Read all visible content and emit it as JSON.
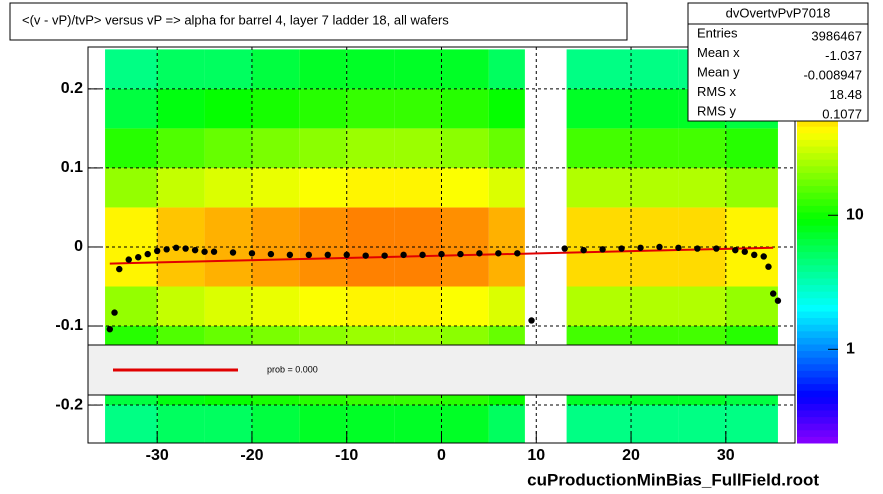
{
  "chart_data": {
    "type": "heatmap-profile",
    "title": "<(v - vP)/tvP> versus   vP => alpha for barrel 4, layer 7 ladder 18, all wafers",
    "footer": "cuProductionMinBias_FullField.root",
    "xlim": [
      -37.3,
      37.3
    ],
    "ylim": [
      -0.248,
      0.253
    ],
    "xticks": [
      -30,
      -20,
      -10,
      0,
      10,
      20,
      30
    ],
    "yticks": [
      -0.2,
      -0.1,
      0,
      0.1,
      0.2
    ],
    "grid": true,
    "xbins": [
      -35.5,
      -30,
      -25,
      -20,
      -15,
      -10,
      -5,
      0,
      5,
      8.8,
      13.2,
      20,
      25,
      30,
      35.5
    ],
    "ybins": [
      -0.25,
      -0.2,
      -0.15,
      -0.1,
      -0.05,
      0,
      0.05,
      0.1,
      0.15,
      0.2,
      0.25
    ],
    "z": [
      [
        4,
        6,
        11,
        21,
        42,
        42,
        21,
        11,
        6,
        4
      ],
      [
        5,
        8,
        14,
        28,
        56,
        56,
        28,
        14,
        8,
        5
      ],
      [
        5,
        9,
        16,
        32,
        63,
        63,
        32,
        16,
        9,
        5
      ],
      [
        6,
        10,
        18,
        35,
        70,
        70,
        35,
        18,
        10,
        6
      ],
      [
        7,
        11,
        20,
        39,
        77,
        77,
        39,
        20,
        11,
        7
      ],
      [
        7,
        12,
        22,
        42,
        84,
        84,
        42,
        22,
        12,
        7
      ],
      [
        7,
        12,
        22,
        42,
        84,
        84,
        42,
        22,
        12,
        7
      ],
      [
        7,
        11,
        20,
        39,
        77,
        77,
        39,
        20,
        11,
        7
      ],
      [
        5,
        9,
        16,
        32,
        63,
        63,
        32,
        16,
        9,
        5
      ],
      [
        null,
        null,
        null,
        null,
        null,
        null,
        null,
        null,
        null,
        null
      ],
      [
        4,
        7,
        13,
        25,
        49,
        49,
        25,
        13,
        7,
        4
      ],
      [
        4,
        7,
        13,
        25,
        49,
        49,
        25,
        13,
        7,
        4
      ],
      [
        4,
        7,
        13,
        25,
        49,
        49,
        25,
        13,
        7,
        4
      ],
      [
        4,
        6,
        11,
        21,
        42,
        42,
        21,
        11,
        6,
        4
      ]
    ],
    "zlim": [
      0.2,
      180
    ],
    "zticks": [
      1,
      10
    ],
    "zlog": true,
    "profile": {
      "color": "#000000",
      "x": [
        -35,
        -34.5,
        -34,
        -33,
        -32,
        -31,
        -30,
        -29,
        -28,
        -27,
        -26,
        -25,
        -24,
        -22,
        -20,
        -18,
        -16,
        -14,
        -12,
        -10,
        -8,
        -6,
        -4,
        -2,
        0,
        2,
        4,
        6,
        8,
        9.5,
        13,
        15,
        17,
        19,
        21,
        23,
        25,
        27,
        29,
        31,
        32,
        33,
        34,
        34.5,
        35,
        35.5
      ],
      "values": [
        -0.104,
        -0.083,
        -0.028,
        -0.016,
        -0.013,
        -0.009,
        -0.005,
        -0.003,
        -0.001,
        -0.002,
        -0.004,
        -0.006,
        -0.006,
        -0.007,
        -0.008,
        -0.009,
        -0.01,
        -0.01,
        -0.01,
        -0.01,
        -0.011,
        -0.011,
        -0.01,
        -0.01,
        -0.009,
        -0.009,
        -0.008,
        -0.008,
        -0.008,
        -0.093,
        -0.002,
        -0.004,
        -0.003,
        -0.002,
        -0.001,
        0.0,
        -0.001,
        -0.002,
        -0.002,
        -0.004,
        -0.006,
        -0.01,
        -0.012,
        -0.025,
        -0.059,
        -0.068
      ]
    },
    "fit": {
      "color": "#e00000",
      "x": [
        -35,
        35
      ],
      "values": [
        -0.021,
        -0.001
      ]
    },
    "legend": {
      "text": "prob = 0.000"
    },
    "stats": {
      "title": "dvOvertvPvP7018",
      "rows": [
        [
          "Entries",
          "3986467"
        ],
        [
          "Mean x",
          "-1.037"
        ],
        [
          "Mean y",
          "-0.008947"
        ],
        [
          "RMS x",
          "18.48"
        ],
        [
          "RMS y",
          "0.1077"
        ]
      ]
    }
  }
}
